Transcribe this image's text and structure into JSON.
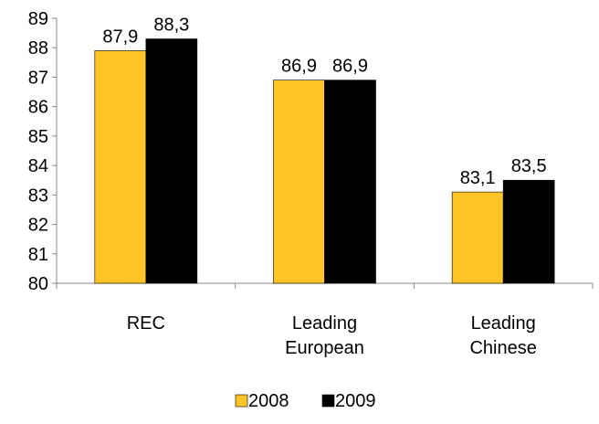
{
  "chart_data": {
    "type": "bar",
    "categories": [
      [
        "REC"
      ],
      [
        "Leading",
        "European"
      ],
      [
        "Leading",
        "Chinese"
      ]
    ],
    "series": [
      {
        "name": "2008",
        "values": [
          87.9,
          86.9,
          83.1
        ],
        "labels": [
          "87,9",
          "86,9",
          "83,1"
        ],
        "color": "#FFC425"
      },
      {
        "name": "2009",
        "values": [
          88.3,
          86.9,
          83.5
        ],
        "labels": [
          "88,3",
          "86,9",
          "83,5"
        ],
        "color": "#000000"
      }
    ],
    "ylim": [
      80,
      89
    ],
    "yticks": [
      80,
      81,
      82,
      83,
      84,
      85,
      86,
      87,
      88,
      89
    ],
    "title": "",
    "xlabel": "",
    "ylabel": "",
    "grid": false,
    "legend": "bottom"
  }
}
